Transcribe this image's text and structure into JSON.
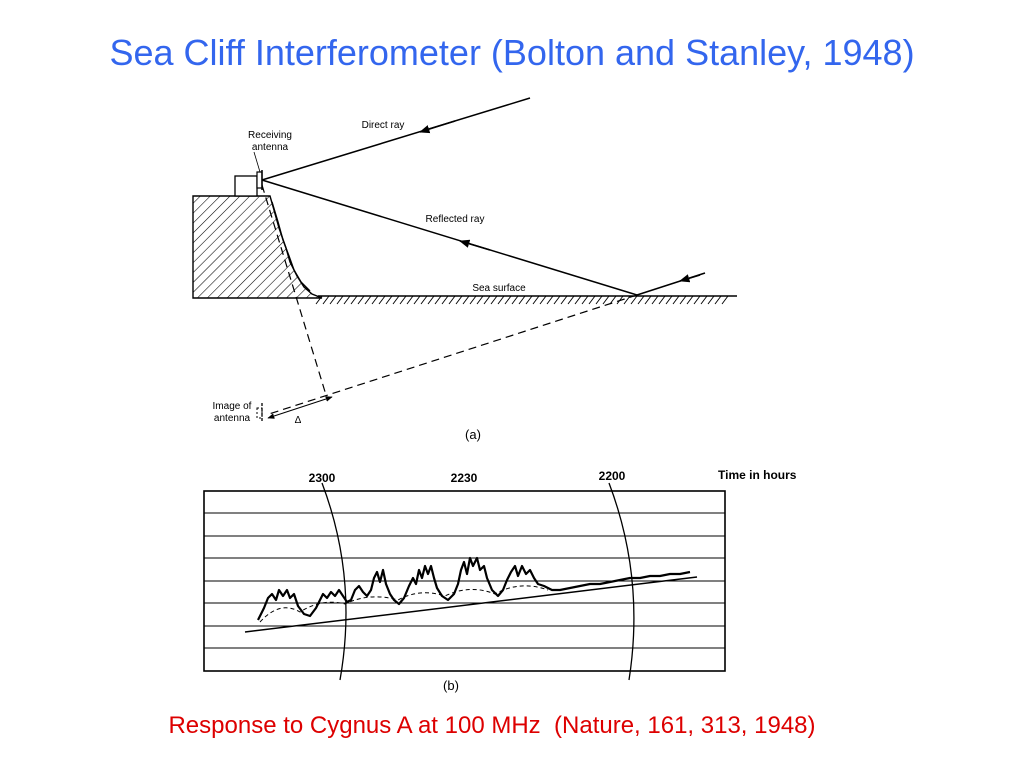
{
  "title": "Sea Cliff Interferometer (Bolton and Stanley, 1948)",
  "caption": "Response to Cygnus A at 100 MHz  (Nature, 161, 313, 1948)",
  "colors": {
    "title": "#3366ee",
    "caption": "#dd0000"
  },
  "diagram_a": {
    "panel_label": "(a)",
    "receiving_antenna": [
      "Receiving",
      "antenna"
    ],
    "direct_ray": "Direct ray",
    "reflected_ray": "Reflected ray",
    "sea_surface": "Sea surface",
    "image_of_antenna": [
      "Image of",
      "antenna"
    ],
    "delta": "Δ"
  },
  "diagram_b": {
    "panel_label": "(b)",
    "time_labels": [
      "2300",
      "2230",
      "2200"
    ],
    "time_axis_label": "Time in hours"
  }
}
